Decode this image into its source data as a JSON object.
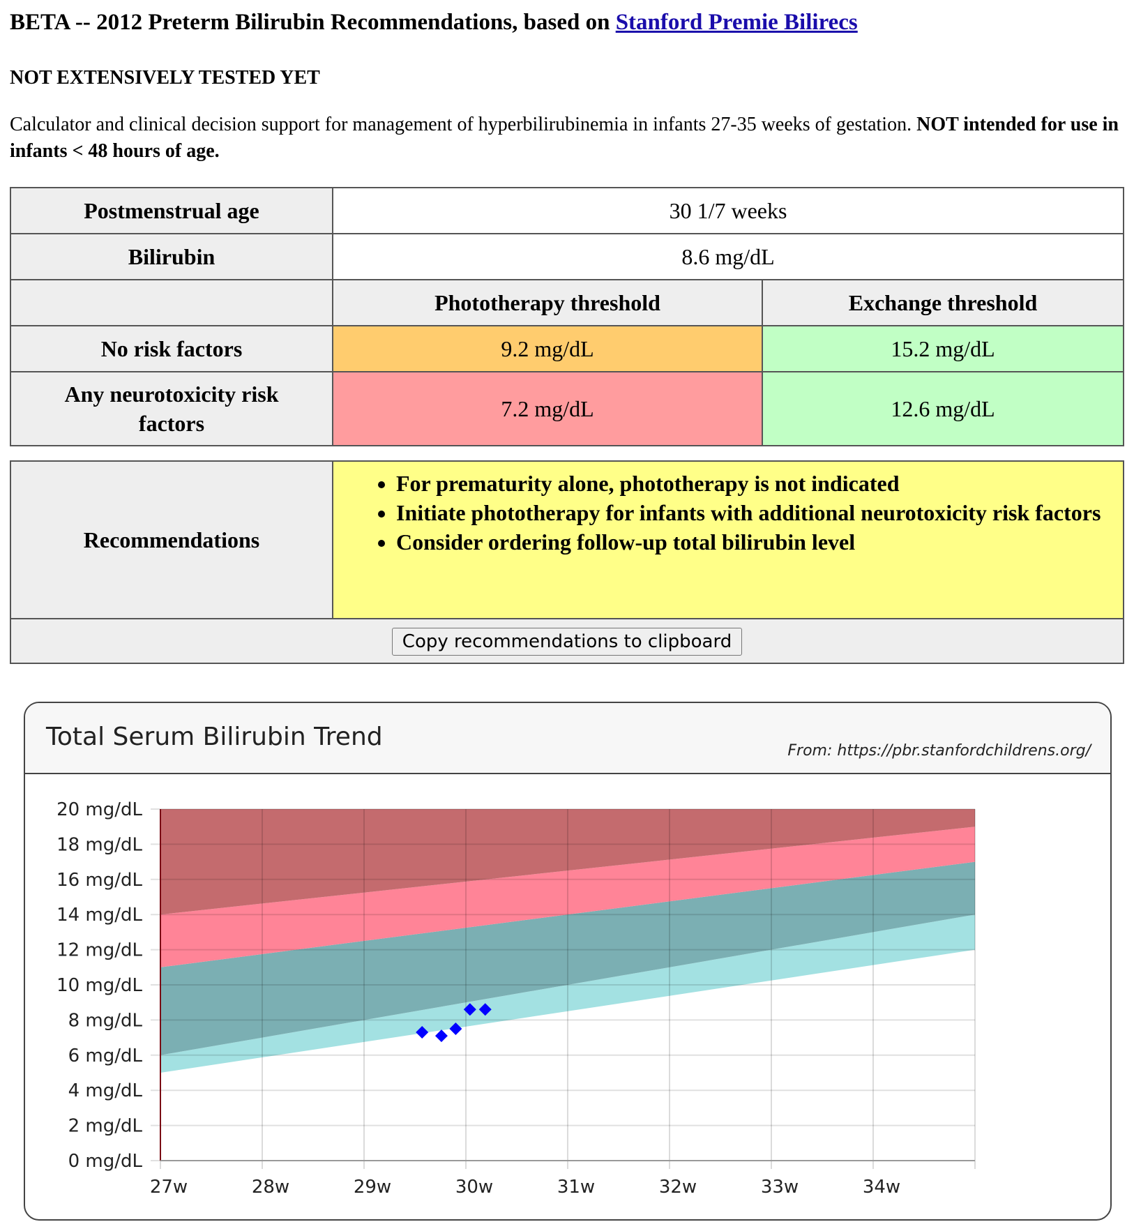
{
  "header": {
    "title_prefix": "BETA -- 2012 Preterm Bilirubin Recommendations, based on ",
    "title_link": "Stanford Premie Bilirecs",
    "warning": "NOT EXTENSIVELY TESTED YET",
    "description": "Calculator and clinical decision support for management of hyperbilirubinemia in infants 27-35 weeks of gestation. ",
    "description_bold": "NOT intended for use in infants < 48 hours of age."
  },
  "calc": {
    "age_label": "Postmenstrual age",
    "age_value": "30 1/7 weeks",
    "bili_label": "Bilirubin",
    "bili_value": "8.6 mg/dL",
    "photo_header": "Phototherapy threshold",
    "exchange_header": "Exchange threshold",
    "no_risk_label": "No risk factors",
    "no_risk_photo": "9.2 mg/dL",
    "no_risk_exchange": "15.2 mg/dL",
    "risk_label": "Any neurotoxicity risk factors",
    "risk_photo": "7.2 mg/dL",
    "risk_exchange": "12.6 mg/dL",
    "colors": {
      "orange": "#ffcc6e",
      "pink": "#ff9c9e",
      "green": "#c1ffc5"
    }
  },
  "recommendations": {
    "label": "Recommendations",
    "items": [
      "For prematurity alone, phototherapy is not indicated",
      "Initiate phototherapy for infants with additional neurotoxicity risk factors",
      "Consider ordering follow-up total bilirubin level"
    ],
    "copy_button": "Copy recommendations to clipboard"
  },
  "chart": {
    "title": "Total Serum Bilirubin Trend",
    "source": "From: https://pbr.stanfordchildrens.org/"
  },
  "chart_data": {
    "type": "area",
    "title": "Total Serum Bilirubin Trend",
    "xlim": [
      27,
      35
    ],
    "ylim": [
      0,
      20
    ],
    "x_ticks": [
      27,
      28,
      29,
      30,
      31,
      32,
      33,
      34
    ],
    "x_tick_labels": [
      "27w",
      "28w",
      "29w",
      "30w",
      "31w",
      "32w",
      "33w",
      "34w"
    ],
    "y_ticks": [
      0,
      2,
      4,
      6,
      8,
      10,
      12,
      14,
      16,
      18,
      20
    ],
    "y_tick_labels": [
      "0 mg/dL",
      "2 mg/dL",
      "4 mg/dL",
      "6 mg/dL",
      "8 mg/dL",
      "10 mg/dL",
      "12 mg/dL",
      "14 mg/dL",
      "16 mg/dL",
      "18 mg/dL",
      "20 mg/dL"
    ],
    "grid": true,
    "bands": [
      {
        "color": "#a3e1e2",
        "upper": [
          [
            27,
            6.0
          ],
          [
            35,
            14.0
          ]
        ],
        "lower": [
          [
            27,
            5.0
          ],
          [
            35,
            12.0
          ]
        ]
      },
      {
        "color": "#7bafb3",
        "upper": [
          [
            27,
            11.0
          ],
          [
            35,
            17.0
          ]
        ],
        "lower": [
          [
            27,
            6.0
          ],
          [
            35,
            14.0
          ]
        ]
      },
      {
        "color": "#ff8497",
        "upper": [
          [
            27,
            14.0
          ],
          [
            35,
            19.0
          ]
        ],
        "lower": [
          [
            27,
            11.0
          ],
          [
            35,
            17.0
          ]
        ]
      },
      {
        "color": "#c46b6e",
        "upper": [
          [
            27,
            20.0
          ],
          [
            35,
            20.0
          ]
        ],
        "lower": [
          [
            27,
            14.0
          ],
          [
            35,
            19.0
          ]
        ]
      }
    ],
    "points": {
      "color": "#0000ff",
      "x": [
        29.57,
        29.76,
        29.9,
        30.04,
        30.19
      ],
      "y": [
        7.3,
        7.1,
        7.5,
        8.6,
        8.6
      ]
    }
  }
}
